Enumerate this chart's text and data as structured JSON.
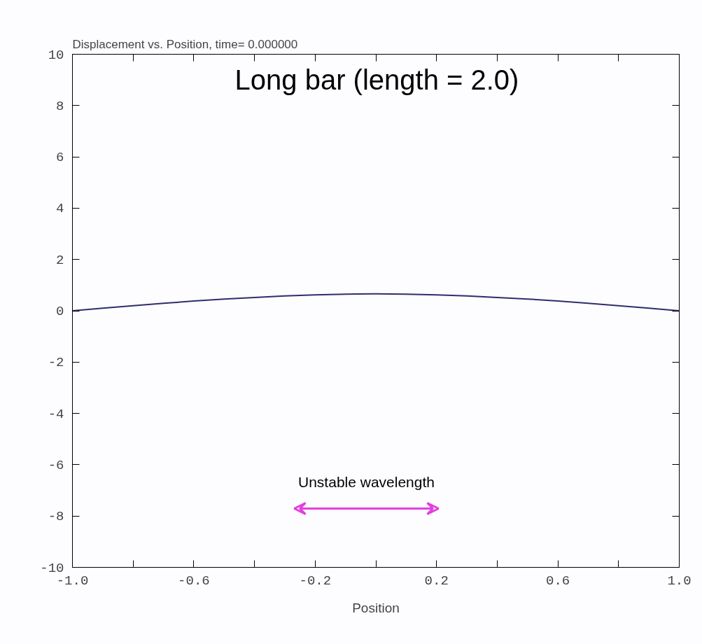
{
  "chart_data": {
    "type": "line",
    "title": "Displacement vs. Position, time= 0.000000",
    "xlabel": "Position",
    "x": [
      -1.0,
      -0.9,
      -0.8,
      -0.7,
      -0.6,
      -0.5,
      -0.4,
      -0.3,
      -0.2,
      -0.1,
      0.0,
      0.1,
      0.2,
      0.3,
      0.4,
      0.5,
      0.6,
      0.7,
      0.8,
      0.9,
      1.0
    ],
    "series": [
      {
        "color": "#2e2e6e",
        "values": [
          0.0,
          0.1,
          0.2,
          0.29,
          0.38,
          0.46,
          0.52,
          0.58,
          0.62,
          0.65,
          0.66,
          0.65,
          0.62,
          0.58,
          0.52,
          0.46,
          0.38,
          0.29,
          0.2,
          0.1,
          0.0
        ]
      }
    ],
    "xlim": [
      -1.0,
      1.0
    ],
    "ylim": [
      -10,
      10
    ],
    "xticks": [
      {
        "value": -1.0,
        "label": "-1.0"
      },
      {
        "value": -0.8,
        "label": null
      },
      {
        "value": -0.6,
        "label": "-0.6"
      },
      {
        "value": -0.4,
        "label": null
      },
      {
        "value": -0.2,
        "label": "-0.2"
      },
      {
        "value": 0.0,
        "label": null
      },
      {
        "value": 0.2,
        "label": "0.2"
      },
      {
        "value": 0.4,
        "label": null
      },
      {
        "value": 0.6,
        "label": "0.6"
      },
      {
        "value": 0.8,
        "label": null
      },
      {
        "value": 1.0,
        "label": "1.0"
      }
    ],
    "yticks": [
      -10,
      -8,
      -6,
      -4,
      -2,
      0,
      2,
      4,
      6,
      8,
      10
    ],
    "annotations": [
      "Long bar (length = 2.0)",
      "Unstable wavelength"
    ],
    "grid": false,
    "marker": "none",
    "line_style": "solid"
  }
}
